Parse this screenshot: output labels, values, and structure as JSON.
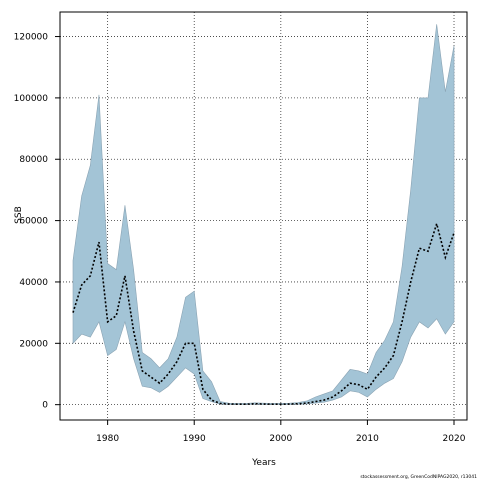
{
  "chart_data": {
    "type": "area",
    "xlabel": "Years",
    "ylabel": "SSB",
    "xlim": [
      1974.5,
      2021.5
    ],
    "ylim": [
      -5000,
      128000
    ],
    "xticks": [
      1980,
      1990,
      2000,
      2010,
      2020
    ],
    "yticks": [
      0,
      20000,
      40000,
      60000,
      80000,
      100000,
      120000
    ],
    "grid": true,
    "credit": "stockassessment.org, GreenCodNIPAG2020, r13041",
    "colors": {
      "band": "#a3c4d6",
      "band_edge": "#8aa3b3",
      "line": "#000000",
      "grid": "#333333"
    },
    "series": [
      {
        "role": "estimate",
        "x": [
          1976,
          1977,
          1978,
          1979,
          1980,
          1981,
          1982,
          1983,
          1984,
          1985,
          1986,
          1987,
          1988,
          1989,
          1990,
          1991,
          1992,
          1993,
          1994,
          1995,
          1996,
          1997,
          1998,
          1999,
          2000,
          2001,
          2002,
          2003,
          2004,
          2005,
          2006,
          2007,
          2008,
          2009,
          2010,
          2011,
          2012,
          2013,
          2014,
          2015,
          2016,
          2017,
          2018,
          2019,
          2020
        ],
        "y": [
          30000,
          39000,
          42000,
          53000,
          27000,
          29000,
          42000,
          24000,
          11000,
          9000,
          7000,
          10000,
          14000,
          20000,
          20000,
          5000,
          1500,
          400,
          200,
          150,
          150,
          300,
          200,
          150,
          150,
          200,
          300,
          500,
          1000,
          1500,
          2500,
          4500,
          7000,
          6500,
          5000,
          9000,
          12000,
          16000,
          27000,
          40000,
          51000,
          50000,
          59000,
          48000,
          56000
        ]
      },
      {
        "role": "upper",
        "x": [
          1976,
          1977,
          1978,
          1979,
          1980,
          1981,
          1982,
          1983,
          1984,
          1985,
          1986,
          1987,
          1988,
          1989,
          1990,
          1991,
          1992,
          1993,
          1994,
          1995,
          1996,
          1997,
          1998,
          1999,
          2000,
          2001,
          2002,
          2003,
          2004,
          2005,
          2006,
          2007,
          2008,
          2009,
          2010,
          2011,
          2012,
          2013,
          2014,
          2015,
          2016,
          2017,
          2018,
          2019,
          2020
        ],
        "y": [
          47000,
          68000,
          78000,
          101000,
          46000,
          44000,
          65000,
          44000,
          17000,
          15000,
          12000,
          15000,
          22000,
          35000,
          37000,
          11000,
          7500,
          1000,
          500,
          400,
          400,
          600,
          500,
          400,
          400,
          500,
          700,
          1200,
          2500,
          3500,
          4500,
          8000,
          11500,
          11000,
          10000,
          17000,
          21000,
          27000,
          45000,
          70000,
          100000,
          100000,
          124000,
          102000,
          117000
        ]
      },
      {
        "role": "lower",
        "x": [
          1976,
          1977,
          1978,
          1979,
          1980,
          1981,
          1982,
          1983,
          1984,
          1985,
          1986,
          1987,
          1988,
          1989,
          1990,
          1991,
          1992,
          1993,
          1994,
          1995,
          1996,
          1997,
          1998,
          1999,
          2000,
          2001,
          2002,
          2003,
          2004,
          2005,
          2006,
          2007,
          2008,
          2009,
          2010,
          2011,
          2012,
          2013,
          2014,
          2015,
          2016,
          2017,
          2018,
          2019,
          2020
        ],
        "y": [
          20000,
          23000,
          22000,
          27000,
          16000,
          18000,
          27000,
          15000,
          6000,
          5500,
          4000,
          6000,
          9000,
          12000,
          10000,
          2000,
          1000,
          150,
          80,
          60,
          60,
          120,
          80,
          60,
          60,
          80,
          120,
          250,
          500,
          800,
          1500,
          2500,
          4500,
          4000,
          2500,
          5000,
          7000,
          8500,
          14000,
          22000,
          27000,
          25000,
          28000,
          23000,
          27000
        ]
      }
    ]
  }
}
